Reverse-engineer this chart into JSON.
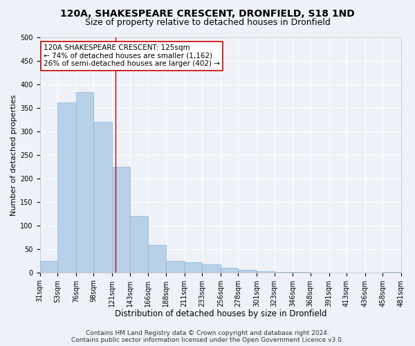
{
  "title": "120A, SHAKESPEARE CRESCENT, DRONFIELD, S18 1ND",
  "subtitle": "Size of property relative to detached houses in Dronfield",
  "xlabel": "Distribution of detached houses by size in Dronfield",
  "ylabel": "Number of detached properties",
  "bar_color": "#b8d0e8",
  "bar_edge_color": "#8ab4d4",
  "bin_labels": [
    "31sqm",
    "53sqm",
    "76sqm",
    "98sqm",
    "121sqm",
    "143sqm",
    "166sqm",
    "188sqm",
    "211sqm",
    "233sqm",
    "256sqm",
    "278sqm",
    "301sqm",
    "323sqm",
    "346sqm",
    "368sqm",
    "391sqm",
    "413sqm",
    "436sqm",
    "458sqm",
    "481sqm"
  ],
  "bin_edges": [
    31,
    53,
    76,
    98,
    121,
    143,
    166,
    188,
    211,
    233,
    256,
    278,
    301,
    323,
    346,
    368,
    391,
    413,
    436,
    458,
    481
  ],
  "bar_heights": [
    25,
    362,
    383,
    320,
    225,
    120,
    58,
    25,
    22,
    18,
    10,
    5,
    2,
    1,
    1,
    0,
    0,
    0,
    0,
    1
  ],
  "ylim": [
    0,
    500
  ],
  "yticks": [
    0,
    50,
    100,
    150,
    200,
    250,
    300,
    350,
    400,
    450,
    500
  ],
  "vline_x": 125,
  "vline_color": "#cc0000",
  "annotation_text": "120A SHAKESPEARE CRESCENT: 125sqm\n← 74% of detached houses are smaller (1,162)\n26% of semi-detached houses are larger (402) →",
  "annotation_box_color": "#ffffff",
  "annotation_edge_color": "#cc0000",
  "footer_text": "Contains HM Land Registry data © Crown copyright and database right 2024.\nContains public sector information licensed under the Open Government Licence v3.0.",
  "background_color": "#eef2f8",
  "grid_color": "#ffffff",
  "title_fontsize": 10,
  "subtitle_fontsize": 9,
  "xlabel_fontsize": 8.5,
  "ylabel_fontsize": 8,
  "tick_fontsize": 7,
  "annotation_fontsize": 7.5,
  "footer_fontsize": 6.5
}
